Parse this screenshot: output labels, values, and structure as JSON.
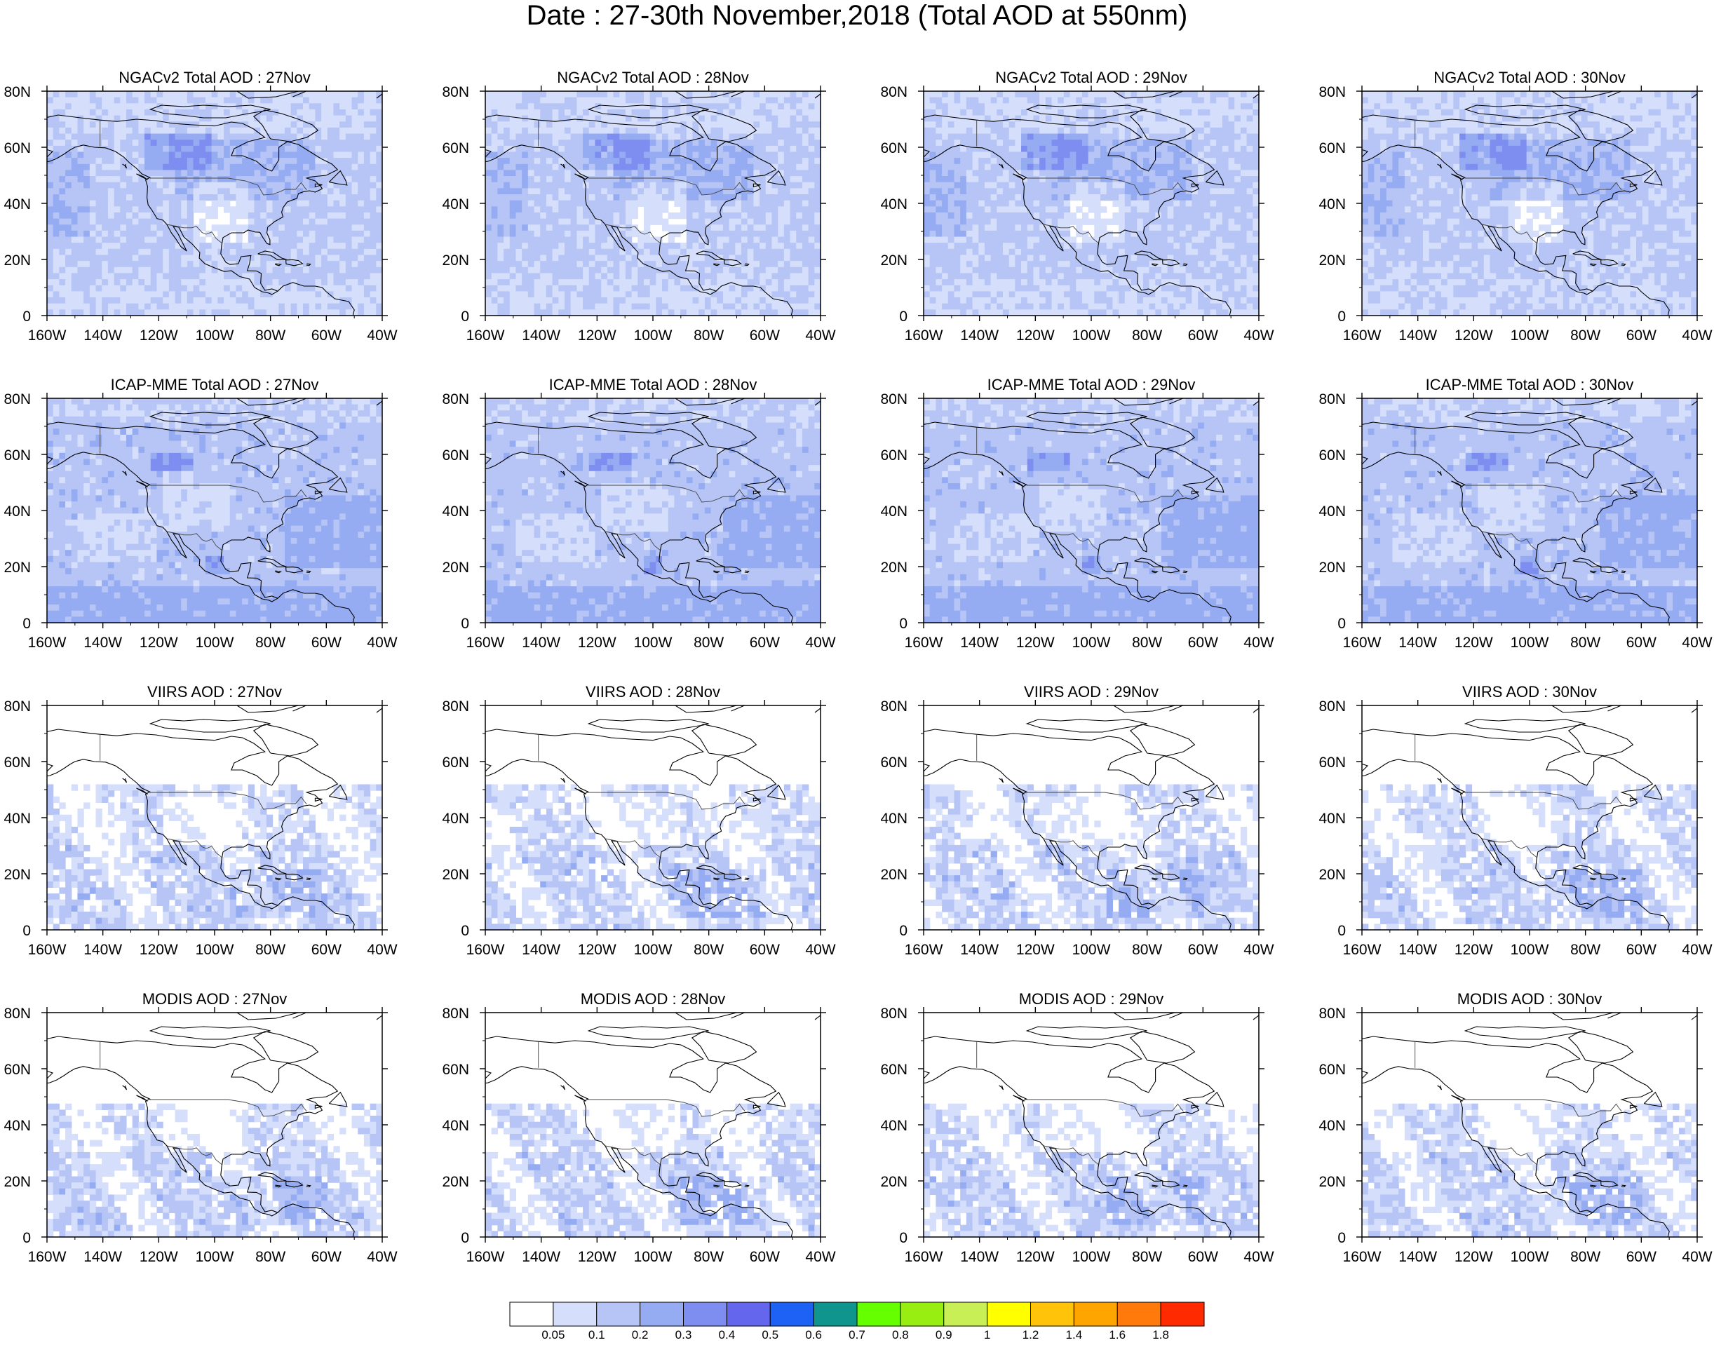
{
  "figure": {
    "title": "Date : 27-30th November,2018 (Total AOD at 550nm)",
    "rows": [
      {
        "product": "NGACv2 Total AOD",
        "panels": [
          "NGACv2 Total AOD : 27Nov",
          "NGACv2 Total AOD : 28Nov",
          "NGACv2 Total AOD : 29Nov",
          "NGACv2 Total AOD : 30Nov"
        ]
      },
      {
        "product": "ICAP-MME Total AOD",
        "panels": [
          "ICAP-MME Total AOD : 27Nov",
          "ICAP-MME Total AOD : 28Nov",
          "ICAP-MME Total AOD : 29Nov",
          "ICAP-MME Total AOD : 30Nov"
        ]
      },
      {
        "product": "VIIRS AOD",
        "panels": [
          "VIIRS AOD : 27Nov",
          "VIIRS AOD : 28Nov",
          "VIIRS AOD : 29Nov",
          "VIIRS AOD : 30Nov"
        ]
      },
      {
        "product": "MODIS AOD",
        "panels": [
          "MODIS AOD : 27Nov",
          "MODIS AOD : 28Nov",
          "MODIS AOD : 29Nov",
          "MODIS AOD : 30Nov"
        ]
      }
    ]
  },
  "map": {
    "lon_range": [
      -160,
      -40
    ],
    "lat_range": [
      0,
      80
    ],
    "x_ticks": [
      "160W",
      "140W",
      "120W",
      "100W",
      "80W",
      "60W",
      "40W"
    ],
    "y_ticks": [
      "0",
      "20N",
      "40N",
      "60N",
      "80N"
    ]
  },
  "colorbar": {
    "labels": [
      "0.05",
      "0.1",
      "0.2",
      "0.3",
      "0.4",
      "0.5",
      "0.6",
      "0.7",
      "0.8",
      "0.9",
      "1",
      "1.2",
      "1.4",
      "1.6",
      "1.8"
    ],
    "colors": [
      "#ffffff",
      "#d5defa",
      "#b6c5f5",
      "#95abf2",
      "#7d8ef0",
      "#6466ee",
      "#1e62f5",
      "#10948e",
      "#66ff00",
      "#99ee11",
      "#c8f056",
      "#ffff00",
      "#ffc30a",
      "#ffa500",
      "#ff7a0a",
      "#ff2a00"
    ]
  }
}
